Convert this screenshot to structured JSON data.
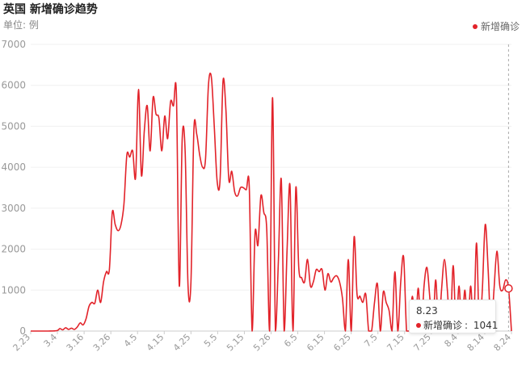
{
  "title": "英国 新增确诊趋势",
  "unit": "单位: 例",
  "legend": {
    "label": "新增确诊",
    "color": "#e2232a"
  },
  "tooltip": {
    "date": "8.23",
    "series": "新增确诊",
    "value_text": "1041"
  },
  "chart_data": {
    "type": "line",
    "title": "英国 新增确诊趋势",
    "ylabel": "单位: 例",
    "ylim": [
      0,
      7000
    ],
    "yticks": [
      0,
      1000,
      2000,
      3000,
      4000,
      5000,
      6000,
      7000
    ],
    "xticks": [
      "2.23",
      "3.4",
      "3.16",
      "3.26",
      "4.5",
      "4.15",
      "4.25",
      "5.5",
      "5.15",
      "5.26",
      "6.5",
      "6.15",
      "6.25",
      "7.5",
      "7.15",
      "7.25",
      "8.4",
      "8.14",
      "8.24"
    ],
    "grid": true,
    "legend_position": "top-right",
    "series": [
      {
        "name": "新增确诊",
        "color": "#e2232a",
        "points": [
          [
            0,
            0
          ],
          [
            3,
            0
          ],
          [
            6,
            0
          ],
          [
            9,
            10
          ],
          [
            10,
            60
          ],
          [
            11,
            30
          ],
          [
            12,
            80
          ],
          [
            13,
            40
          ],
          [
            14,
            70
          ],
          [
            15,
            40
          ],
          [
            16,
            100
          ],
          [
            17,
            200
          ],
          [
            18,
            150
          ],
          [
            19,
            300
          ],
          [
            20,
            600
          ],
          [
            21,
            700
          ],
          [
            22,
            680
          ],
          [
            23,
            1000
          ],
          [
            24,
            700
          ],
          [
            25,
            1200
          ],
          [
            26,
            1450
          ],
          [
            27,
            1500
          ],
          [
            28,
            2900
          ],
          [
            29,
            2600
          ],
          [
            30,
            2450
          ],
          [
            31,
            2600
          ],
          [
            32,
            3100
          ],
          [
            33,
            4300
          ],
          [
            34,
            4250
          ],
          [
            35,
            4400
          ],
          [
            36,
            3750
          ],
          [
            37,
            5900
          ],
          [
            38,
            3800
          ],
          [
            39,
            4900
          ],
          [
            40,
            5500
          ],
          [
            41,
            4400
          ],
          [
            42,
            5700
          ],
          [
            43,
            5300
          ],
          [
            44,
            5200
          ],
          [
            45,
            4400
          ],
          [
            46,
            5250
          ],
          [
            47,
            4700
          ],
          [
            48,
            5600
          ],
          [
            49,
            5500
          ],
          [
            50,
            5800
          ],
          [
            51,
            1100
          ],
          [
            52,
            4700
          ],
          [
            53,
            4400
          ],
          [
            54,
            1100
          ],
          [
            55,
            1200
          ],
          [
            56,
            4900
          ],
          [
            57,
            4800
          ],
          [
            58,
            4300
          ],
          [
            59,
            4000
          ],
          [
            60,
            4200
          ],
          [
            61,
            6000
          ],
          [
            62,
            6200
          ],
          [
            63,
            5000
          ],
          [
            64,
            3650
          ],
          [
            65,
            3700
          ],
          [
            66,
            6100
          ],
          [
            67,
            5400
          ],
          [
            68,
            3700
          ],
          [
            69,
            3900
          ],
          [
            70,
            3400
          ],
          [
            71,
            3300
          ],
          [
            72,
            3500
          ],
          [
            73,
            3500
          ],
          [
            74,
            3450
          ],
          [
            75,
            3550
          ],
          [
            76,
            0
          ],
          [
            77,
            2400
          ],
          [
            78,
            2100
          ],
          [
            79,
            3300
          ],
          [
            80,
            2900
          ],
          [
            81,
            2500
          ],
          [
            82,
            0
          ],
          [
            83,
            5700
          ],
          [
            84,
            0
          ],
          [
            85,
            1700
          ],
          [
            86,
            3700
          ],
          [
            87,
            0
          ],
          [
            88,
            2000
          ],
          [
            89,
            3550
          ],
          [
            90,
            0
          ],
          [
            91,
            3500
          ],
          [
            92,
            1550
          ],
          [
            93,
            1300
          ],
          [
            94,
            1200
          ],
          [
            95,
            1750
          ],
          [
            96,
            1100
          ],
          [
            97,
            1200
          ],
          [
            98,
            1500
          ],
          [
            99,
            1450
          ],
          [
            100,
            1500
          ],
          [
            101,
            1000
          ],
          [
            102,
            1400
          ],
          [
            103,
            1200
          ],
          [
            104,
            1300
          ],
          [
            105,
            1350
          ],
          [
            106,
            1200
          ],
          [
            107,
            800
          ],
          [
            108,
            0
          ],
          [
            109,
            1750
          ],
          [
            110,
            0
          ],
          [
            111,
            2300
          ],
          [
            112,
            900
          ],
          [
            113,
            850
          ],
          [
            114,
            700
          ],
          [
            115,
            900
          ],
          [
            116,
            0
          ],
          [
            117,
            0
          ],
          [
            118,
            700
          ],
          [
            119,
            1150
          ],
          [
            120,
            0
          ],
          [
            121,
            950
          ],
          [
            122,
            700
          ],
          [
            123,
            500
          ],
          [
            124,
            0
          ],
          [
            125,
            1450
          ],
          [
            126,
            0
          ],
          [
            127,
            1200
          ],
          [
            128,
            1800
          ],
          [
            129,
            0
          ],
          [
            130,
            0
          ],
          [
            131,
            850
          ],
          [
            132,
            0
          ],
          [
            133,
            1050
          ],
          [
            134,
            0
          ],
          [
            135,
            1100
          ],
          [
            136,
            1550
          ],
          [
            137,
            800
          ],
          [
            138,
            0
          ],
          [
            139,
            1250
          ],
          [
            140,
            0
          ],
          [
            141,
            1000
          ],
          [
            142,
            1750
          ],
          [
            143,
            1000
          ],
          [
            144,
            0
          ],
          [
            145,
            1600
          ],
          [
            146,
            0
          ],
          [
            147,
            1100
          ],
          [
            148,
            0
          ],
          [
            149,
            1000
          ],
          [
            150,
            0
          ],
          [
            151,
            1100
          ],
          [
            152,
            0
          ],
          [
            153,
            2150
          ],
          [
            154,
            0
          ],
          [
            155,
            1000
          ],
          [
            156,
            2600
          ],
          [
            157,
            1500
          ],
          [
            158,
            0
          ],
          [
            159,
            1000
          ],
          [
            160,
            1950
          ],
          [
            161,
            1100
          ],
          [
            162,
            1000
          ],
          [
            163,
            1250
          ],
          [
            164,
            1041
          ],
          [
            165,
            0
          ]
        ]
      }
    ],
    "highlight": {
      "x_label": "8.23",
      "value": 1041
    }
  }
}
